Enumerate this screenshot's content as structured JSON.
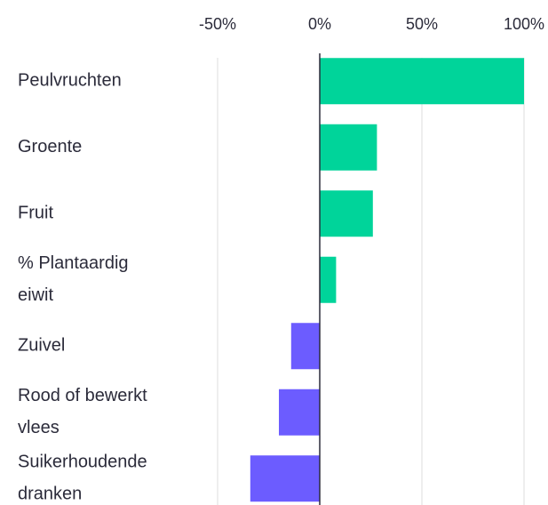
{
  "chart_data": {
    "type": "barh",
    "categories": [
      "Peulvruchten",
      "Groente",
      "Fruit",
      "% Plantaardig eiwit",
      "Zuivel",
      "Rood of bewerkt vlees",
      "Suikerhoudende dranken"
    ],
    "values": [
      100,
      28,
      26,
      8,
      -14,
      -20,
      -34
    ],
    "colors": {
      "positive": "#00d49a",
      "negative": "#6c5cff"
    },
    "xlim": [
      -50,
      100
    ],
    "xticks": [
      {
        "value": -50,
        "label": "-50%"
      },
      {
        "value": 0,
        "label": "0%"
      },
      {
        "value": 50,
        "label": "50%"
      },
      {
        "value": 100,
        "label": "100%"
      }
    ],
    "grid": true
  }
}
